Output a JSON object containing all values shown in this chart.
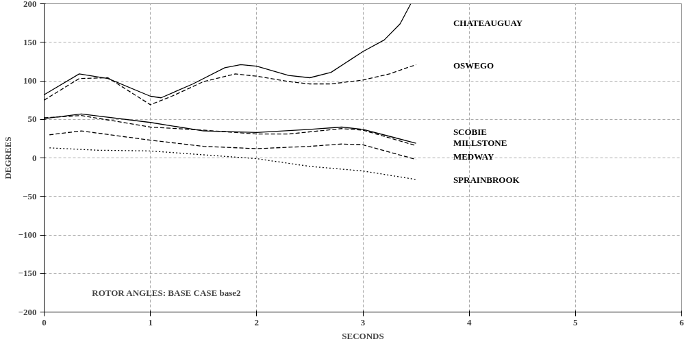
{
  "chart_data": {
    "type": "line",
    "xlabel": "SECONDS",
    "ylabel": "DEGREES",
    "xlim": [
      0,
      6
    ],
    "ylim": [
      -200,
      200
    ],
    "xticks": [
      0,
      1,
      2,
      3,
      4,
      5,
      6
    ],
    "yticks": [
      -200,
      -150,
      -100,
      -50,
      0,
      50,
      100,
      150,
      200
    ],
    "grid": true,
    "annotations": [
      "ROTOR ANGLES: BASE CASE base2"
    ],
    "series": [
      {
        "name": "CHATEAUGUAY",
        "color": "#000000",
        "line_style": "solid",
        "x": [
          0,
          0.33,
          0.6,
          1.0,
          1.1,
          1.4,
          1.7,
          1.85,
          2.0,
          2.3,
          2.5,
          2.7,
          3.0,
          3.2,
          3.35,
          3.45
        ],
        "values": [
          82,
          109,
          103,
          80,
          78,
          96,
          117,
          121,
          119,
          107,
          104,
          111,
          138,
          153,
          174,
          200
        ]
      },
      {
        "name": "OSWEGO",
        "color": "#000000",
        "line_style": "dashed",
        "x": [
          0,
          0.33,
          0.6,
          1.0,
          1.2,
          1.5,
          1.8,
          2.0,
          2.3,
          2.5,
          2.7,
          3.0,
          3.25,
          3.5
        ],
        "values": [
          75,
          103,
          104,
          69,
          80,
          99,
          109,
          106,
          99,
          96,
          96,
          101,
          109,
          121
        ]
      },
      {
        "name": "SCOBIE",
        "color": "#000000",
        "line_style": "solid",
        "x": [
          0,
          0.35,
          1.0,
          1.5,
          2.0,
          2.5,
          2.8,
          3.0,
          3.25,
          3.5
        ],
        "values": [
          51,
          57,
          46,
          35,
          33,
          37,
          40,
          37,
          28,
          19
        ]
      },
      {
        "name": "MILLSTONE",
        "color": "#000000",
        "line_style": "dashed",
        "x": [
          0,
          0.35,
          1.0,
          1.5,
          2.0,
          2.3,
          2.8,
          3.0,
          3.5
        ],
        "values": [
          52,
          55,
          40,
          36,
          31,
          31,
          38,
          36,
          16
        ]
      },
      {
        "name": "MEDWAY",
        "color": "#000000",
        "line_style": "dashed",
        "x": [
          0.05,
          0.35,
          1.0,
          1.5,
          2.0,
          2.5,
          2.8,
          3.0,
          3.5
        ],
        "values": [
          30,
          35,
          23,
          15,
          12,
          15,
          18,
          17,
          -2
        ]
      },
      {
        "name": "SPRAINBROOK",
        "color": "#000000",
        "line_style": "dotted",
        "x": [
          0.05,
          0.5,
          1.0,
          1.5,
          2.0,
          2.5,
          3.0,
          3.5
        ],
        "values": [
          13,
          10,
          9,
          4,
          -1,
          -11,
          -17,
          -28
        ]
      }
    ]
  }
}
